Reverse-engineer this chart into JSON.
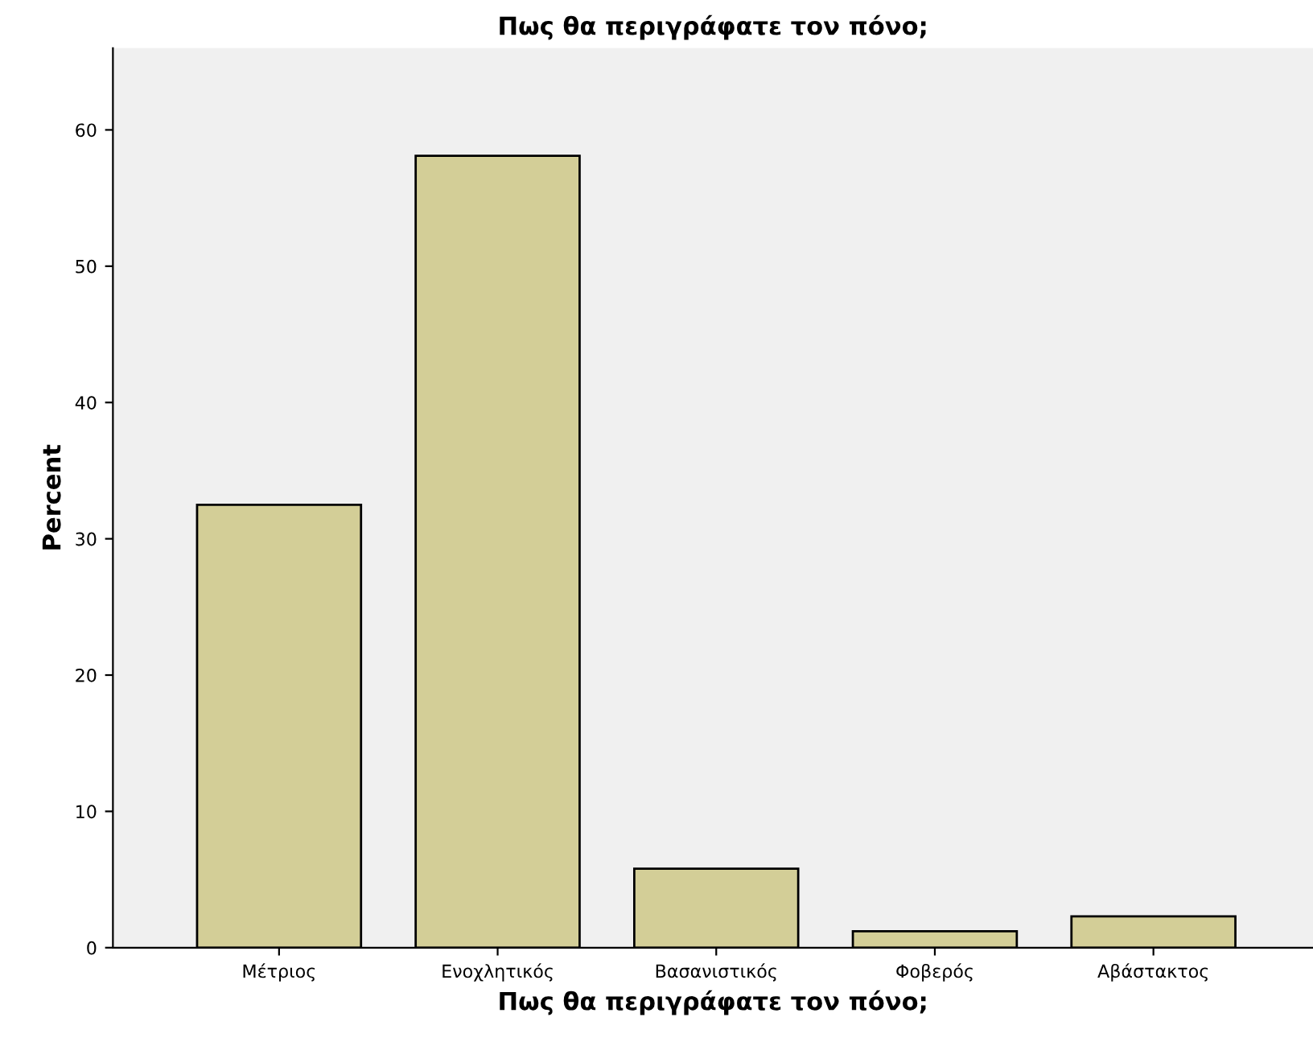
{
  "chart_data": {
    "type": "bar",
    "title": "Πως θα περιγράφατε τον πόνο;",
    "xlabel": "Πως θα περιγράφατε τον πόνο;",
    "ylabel": "Percent",
    "categories": [
      "Μέτριος",
      "Ενοχλητικός",
      "Βασανιστικός",
      "Φοβερός",
      "Αβάστακτος"
    ],
    "values": [
      32.5,
      58.1,
      5.8,
      1.2,
      2.3
    ],
    "color": "#d3ce97",
    "ylim": [
      0,
      66
    ],
    "yticks": [
      0,
      10,
      20,
      30,
      40,
      50,
      60
    ],
    "grid": false,
    "legend": false
  }
}
